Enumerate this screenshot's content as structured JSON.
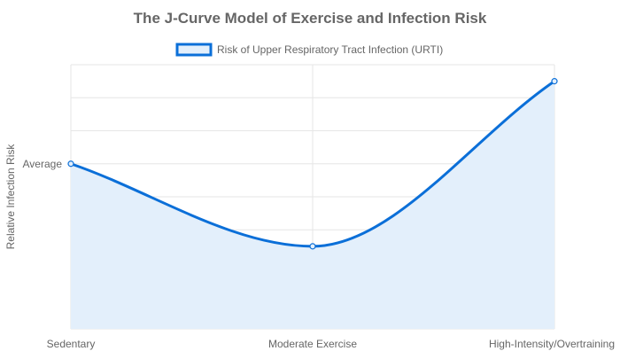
{
  "chart_data": {
    "type": "line",
    "title": "The J-Curve Model of Exercise and Infection Risk",
    "categories": [
      "Sedentary",
      "Moderate Exercise",
      "High-Intensity/Overtraining"
    ],
    "series": [
      {
        "name": "Risk of Upper Respiratory Tract Infection (URTI)",
        "values": [
          5,
          2.5,
          7.5
        ],
        "color": "#0b6fd8",
        "fill": "#e3effb"
      }
    ],
    "xlabel": "",
    "ylabel": "Relative Infection Risk",
    "y_ticks": [
      {
        "value": 5,
        "label": "Average"
      }
    ],
    "ylim": [
      0,
      8
    ],
    "grid": true,
    "legend_position": "top",
    "smooth": true
  }
}
